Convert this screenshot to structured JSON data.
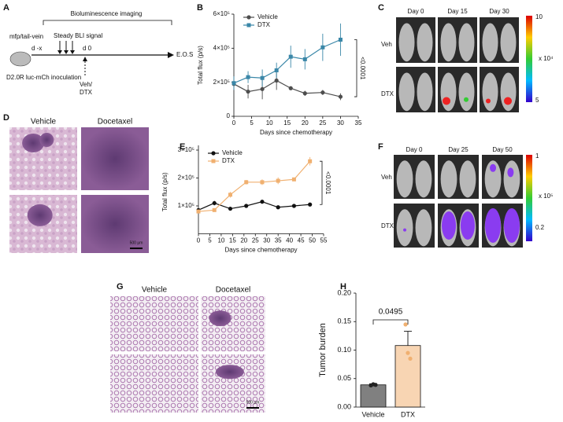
{
  "panel_labels": [
    "A",
    "B",
    "C",
    "D",
    "E",
    "F",
    "G",
    "H"
  ],
  "schematic": {
    "title": "Bioluminescence imaging",
    "route": "mfp/tail-vein",
    "steady": "Steady BLI signal",
    "start": "d -x",
    "day0": "d 0",
    "end": "E.O.S",
    "inoculation": "D2.0R luc-mCh inoculation",
    "treatment": [
      "Veh/",
      "DTX"
    ]
  },
  "panel_C": {
    "columns": [
      "Day 0",
      "Day 15",
      "Day 30"
    ],
    "rows": [
      "Veh",
      "DTX"
    ],
    "colorbar": [
      "10",
      "x 10⁴",
      "5"
    ]
  },
  "panel_D": {
    "columns": [
      "Vehicle",
      "Docetaxel"
    ],
    "scale": "500 μm"
  },
  "panel_F": {
    "columns": [
      "Day 0",
      "Day 25",
      "Day 50"
    ],
    "rows": [
      "Veh",
      "DTX"
    ],
    "colorbar": [
      "1",
      "x 10⁵",
      "0.2"
    ]
  },
  "panel_G": {
    "columns": [
      "Vehicle",
      "Docetaxel"
    ],
    "scale": "500 μm"
  },
  "chart_data": [
    {
      "type": "line",
      "xlabel": "Days since chemotherapy",
      "ylabel": "Total flux (p/s)",
      "x": [
        0,
        4,
        8,
        12,
        16,
        20,
        25,
        30
      ],
      "series": [
        {
          "name": "Vehicle",
          "color": "#4d4d4d",
          "marker": "circle",
          "values": [
            190000,
            145000,
            160000,
            210000,
            165000,
            135000,
            140000,
            115000
          ],
          "errors": [
            35000,
            40000,
            60000,
            55000,
            10000,
            15000,
            15000,
            20000
          ]
        },
        {
          "name": "DTX",
          "color": "#3a87a8",
          "marker": "square",
          "values": [
            195000,
            230000,
            225000,
            270000,
            350000,
            335000,
            405000,
            450000
          ],
          "errors": [
            40000,
            35000,
            50000,
            45000,
            65000,
            60000,
            80000,
            95000
          ]
        }
      ],
      "xlim": [
        0,
        35
      ],
      "xticks": [
        0,
        5,
        10,
        15,
        20,
        25,
        30,
        35
      ],
      "ylim": [
        0,
        600000
      ],
      "yticks": [
        0,
        {
          "value": 200000,
          "label": "2×10⁵"
        },
        {
          "value": 400000,
          "label": "4×10⁵"
        },
        {
          "value": 600000,
          "label": "6×10⁵"
        }
      ],
      "annotation": "<0.0001",
      "legend": "upper left"
    },
    {
      "type": "line",
      "xlabel": "Days since chemotherapy",
      "ylabel": "Total flux (p/s)",
      "x": [
        0,
        7,
        14,
        21,
        28,
        35,
        42,
        49
      ],
      "series": [
        {
          "name": "Vehicle",
          "color": "#111111",
          "marker": "circle",
          "values": [
            85000,
            110000,
            90000,
            100000,
            115000,
            95000,
            100000,
            105000
          ],
          "errors": [
            5000,
            8000,
            4000,
            5000,
            7000,
            4000,
            5000,
            6000
          ]
        },
        {
          "name": "DTX",
          "color": "#f0b070",
          "marker": "square",
          "values": [
            80000,
            85000,
            140000,
            185000,
            185000,
            190000,
            195000,
            260000
          ],
          "errors": [
            5000,
            5000,
            10000,
            8000,
            10000,
            12000,
            5000,
            15000
          ]
        }
      ],
      "xlim": [
        0,
        55
      ],
      "xticks": [
        0,
        5,
        10,
        15,
        20,
        25,
        30,
        35,
        40,
        45,
        50,
        55
      ],
      "ylim": [
        0,
        300000
      ],
      "yticks": [
        {
          "value": 100000,
          "label": "1×10⁵"
        },
        {
          "value": 200000,
          "label": "2×10⁵"
        },
        {
          "value": 300000,
          "label": "3×10⁵"
        }
      ],
      "annotation": "<0.0001",
      "legend": "upper left"
    },
    {
      "type": "bar",
      "ylabel": "Tumor burden",
      "categories": [
        "Vehicle",
        "DTX"
      ],
      "values": [
        0.039,
        0.108
      ],
      "errors": [
        0.002,
        0.025
      ],
      "points": [
        [
          0.038,
          0.04,
          0.039
        ],
        [
          0.145,
          0.095,
          0.085
        ]
      ],
      "colors": [
        "#808080",
        "#f8d5b3"
      ],
      "point_colors": [
        "#222222",
        "#f0b070"
      ],
      "ylim": [
        0,
        0.2
      ],
      "yticks": [
        {
          "value": 0,
          "label": "0.00"
        },
        0.05,
        {
          "value": 0.1,
          "label": "0.10"
        },
        0.15,
        {
          "value": 0.2,
          "label": "0.20"
        }
      ],
      "annotation": "0.0495"
    }
  ]
}
